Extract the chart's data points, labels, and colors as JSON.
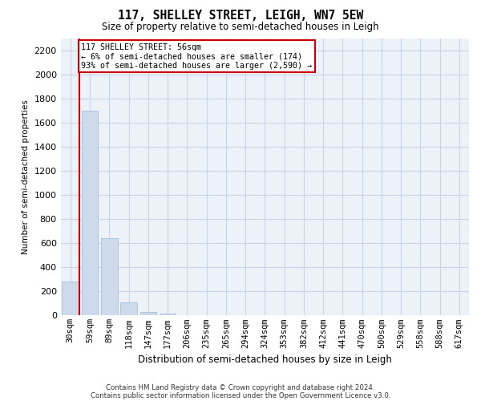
{
  "title": "117, SHELLEY STREET, LEIGH, WN7 5EW",
  "subtitle": "Size of property relative to semi-detached houses in Leigh",
  "xlabel": "Distribution of semi-detached houses by size in Leigh",
  "ylabel": "Number of semi-detached properties",
  "categories": [
    "30sqm",
    "59sqm",
    "89sqm",
    "118sqm",
    "147sqm",
    "177sqm",
    "206sqm",
    "235sqm",
    "265sqm",
    "294sqm",
    "324sqm",
    "353sqm",
    "382sqm",
    "412sqm",
    "441sqm",
    "470sqm",
    "500sqm",
    "529sqm",
    "558sqm",
    "588sqm",
    "617sqm"
  ],
  "values": [
    280,
    1700,
    640,
    110,
    30,
    15,
    5,
    0,
    0,
    0,
    0,
    0,
    0,
    0,
    0,
    0,
    0,
    0,
    0,
    0,
    0
  ],
  "bar_color": "#cddaeb",
  "bar_edge_color": "#a8bedc",
  "ylim": [
    0,
    2300
  ],
  "yticks": [
    0,
    200,
    400,
    600,
    800,
    1000,
    1200,
    1400,
    1600,
    1800,
    2000,
    2200
  ],
  "property_line_x": 0.48,
  "annotation_title": "117 SHELLEY STREET: 56sqm",
  "annotation_line1": "← 6% of semi-detached houses are smaller (174)",
  "annotation_line2": "93% of semi-detached houses are larger (2,590) →",
  "annotation_color": "#cc0000",
  "grid_color": "#c8d4e8",
  "background_color": "#edf1f8",
  "footnote1": "Contains HM Land Registry data © Crown copyright and database right 2024.",
  "footnote2": "Contains public sector information licensed under the Open Government Licence v3.0."
}
